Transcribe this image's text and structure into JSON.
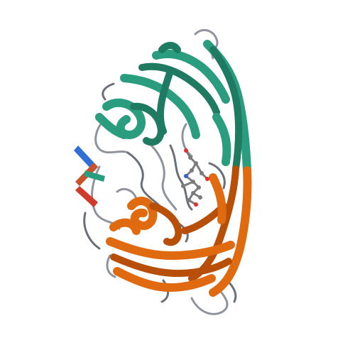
{
  "image": {
    "subject": "protein-ribbon-structure",
    "background": "#ffffff"
  },
  "colors": {
    "chain_a": "#2a9d7f",
    "chain_a_dark": "#1f7a62",
    "chain_b": "#e06a10",
    "chain_b_dark": "#b84f08",
    "chain_b_alt": "#c8532a",
    "loop": "#8f949c",
    "loop_dark": "#6b7078",
    "strand_blue": "#2f6fd6",
    "strand_red": "#d03a2a",
    "ligand_carbon": "#7b7b7b",
    "ligand_oxygen": "#e03030",
    "ligand_nitrogen": "#3a5fd0"
  }
}
